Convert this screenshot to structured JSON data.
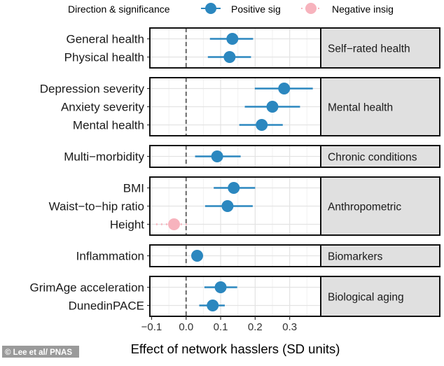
{
  "chart_data": {
    "type": "forest",
    "xlabel": "Effect of network hasslers (SD units)",
    "xlim": [
      -0.105,
      0.39
    ],
    "xticks": [
      -0.1,
      0.0,
      0.1,
      0.2,
      0.3
    ],
    "xtick_labels": [
      "−0.1",
      "0.0",
      "0.1",
      "0.2",
      "0.3"
    ],
    "reference_line": 0,
    "grid": true,
    "legend": {
      "title": "Direction & significance",
      "placement": "top",
      "entries": [
        {
          "label": "Positive sig",
          "color": "#2b87bf"
        },
        {
          "label": "Negative insig",
          "color": "#f7b3bd"
        }
      ]
    },
    "panels": [
      {
        "label": "Self−rated health",
        "rows": [
          {
            "label": "General health",
            "estimate": 0.134,
            "lo": 0.069,
            "hi": 0.194,
            "group": "Positive sig"
          },
          {
            "label": "Physical health",
            "estimate": 0.126,
            "lo": 0.063,
            "hi": 0.188,
            "group": "Positive sig"
          }
        ]
      },
      {
        "label": "Mental health",
        "rows": [
          {
            "label": "Depression severity",
            "estimate": 0.284,
            "lo": 0.199,
            "hi": 0.367,
            "group": "Positive sig"
          },
          {
            "label": "Anxiety severity",
            "estimate": 0.25,
            "lo": 0.17,
            "hi": 0.33,
            "group": "Positive sig"
          },
          {
            "label": "Mental health",
            "estimate": 0.219,
            "lo": 0.154,
            "hi": 0.28,
            "group": "Positive sig"
          }
        ]
      },
      {
        "label": "Chronic conditions",
        "rows": [
          {
            "label": "Multi−morbidity",
            "estimate": 0.09,
            "lo": 0.026,
            "hi": 0.158,
            "group": "Positive sig"
          }
        ]
      },
      {
        "label": "Anthropometric",
        "rows": [
          {
            "label": "BMI",
            "estimate": 0.138,
            "lo": 0.08,
            "hi": 0.2,
            "group": "Positive sig"
          },
          {
            "label": "Waist−to−hip ratio",
            "estimate": 0.12,
            "lo": 0.055,
            "hi": 0.193,
            "group": "Positive sig"
          },
          {
            "label": "Height",
            "estimate": -0.035,
            "lo": -0.087,
            "hi": 0.01,
            "group": "Negative insig"
          }
        ]
      },
      {
        "label": "Biomarkers",
        "rows": [
          {
            "label": "Inflammation",
            "estimate": 0.032,
            "lo": 0.026,
            "hi": 0.038,
            "group": "Positive sig"
          }
        ]
      },
      {
        "label": "Biological aging",
        "rows": [
          {
            "label": "GrimAge acceleration",
            "estimate": 0.1,
            "lo": 0.053,
            "hi": 0.148,
            "group": "Positive sig"
          },
          {
            "label": "DunedinPACE",
            "estimate": 0.077,
            "lo": 0.038,
            "hi": 0.112,
            "group": "Positive sig"
          }
        ]
      }
    ]
  },
  "watermark": "© Lee et al/ PNAS"
}
